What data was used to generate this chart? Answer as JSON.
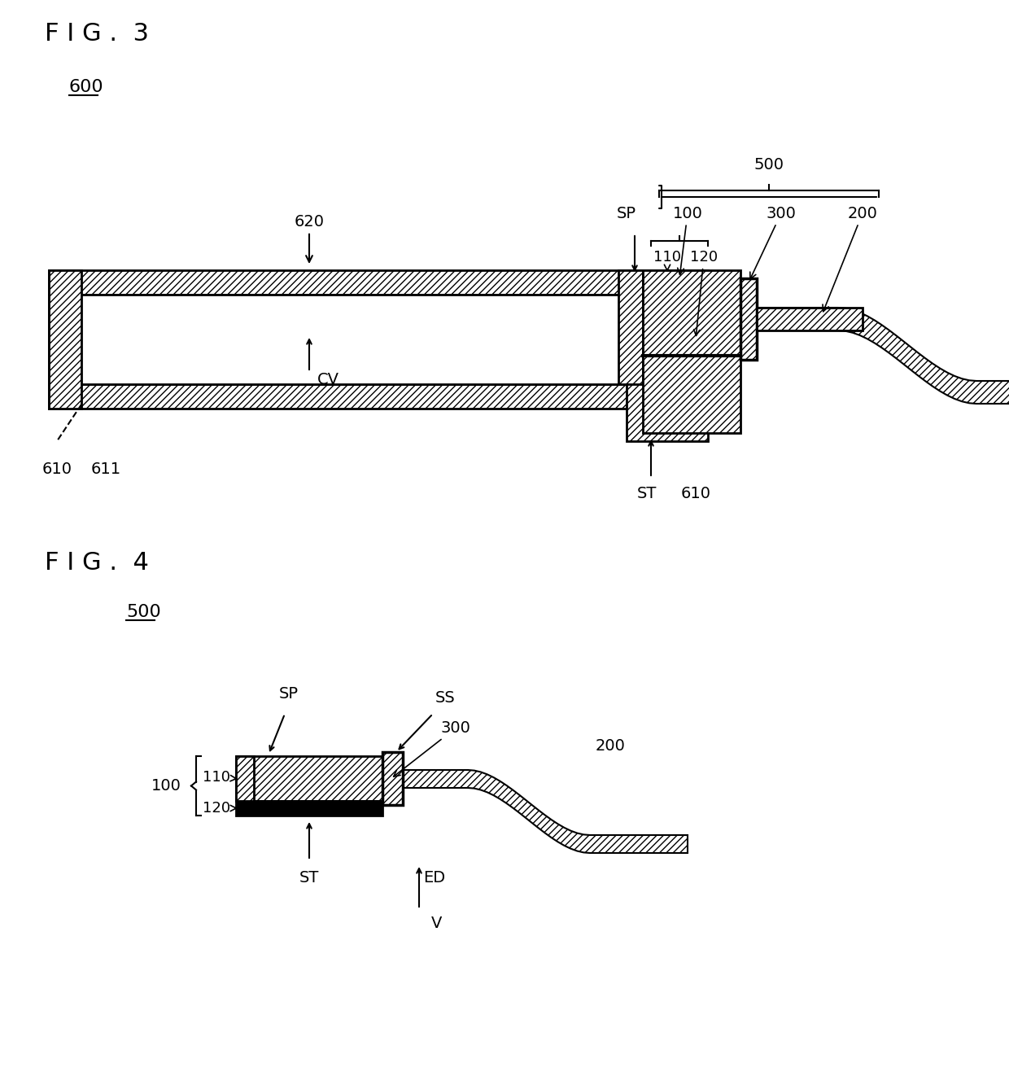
{
  "fig3_title": "F I G .  3",
  "fig4_title": "F I G .  4",
  "bg_color": "#ffffff",
  "line_color": "#000000",
  "hatch_pattern": "////",
  "hatch_dense": "////",
  "fig3_label_600": "600",
  "fig3_label_500": "500",
  "fig3_label_100": "100",
  "fig3_label_300": "300",
  "fig3_label_200": "200",
  "fig3_label_110": "110",
  "fig3_label_120": "120",
  "fig3_label_620": "620",
  "fig3_label_SP": "SP",
  "fig3_label_ST": "ST",
  "fig3_label_610a": "610",
  "fig3_label_611": "611",
  "fig3_label_CV": "CV",
  "fig3_label_610b": "610",
  "fig4_label_500": "500",
  "fig4_label_100": "100",
  "fig4_label_110": "110",
  "fig4_label_120": "120",
  "fig4_label_SP": "SP",
  "fig4_label_SS": "SS",
  "fig4_label_300": "300",
  "fig4_label_200": "200",
  "fig4_label_ST": "ST",
  "fig4_label_ED": "ED",
  "fig4_label_V": "V"
}
